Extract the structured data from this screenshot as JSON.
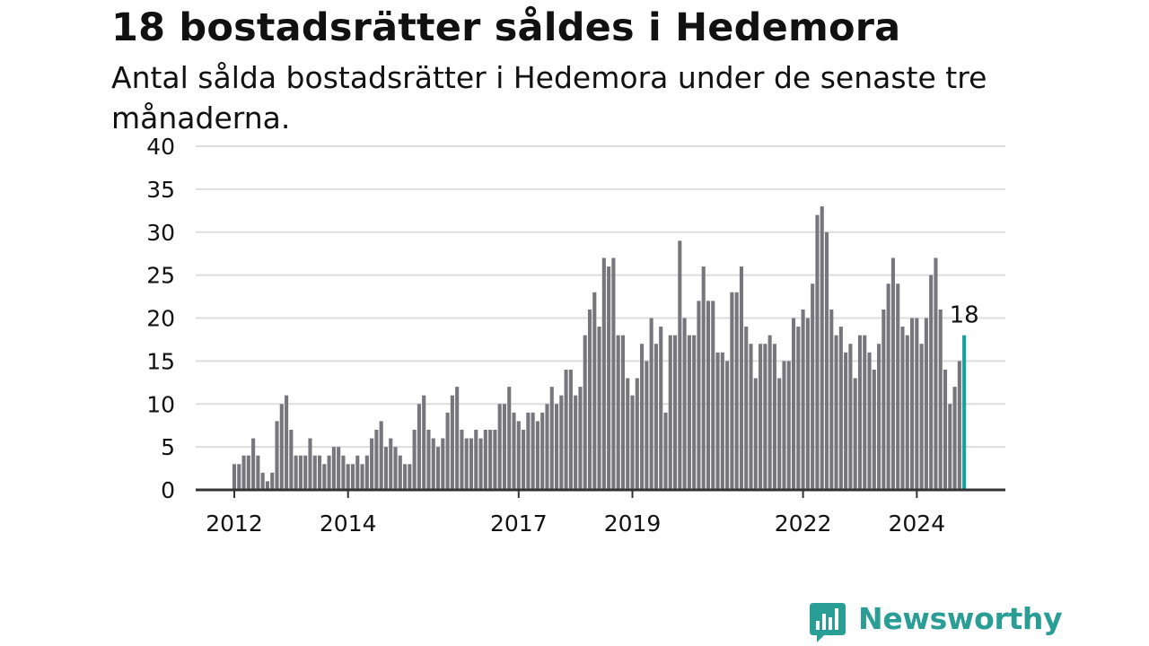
{
  "header": {
    "title": "18 bostadsrätter såldes i Hedemora",
    "subtitle": "Antal sålda bostadsrätter i Hedemora under de senaste tre månaderna."
  },
  "brand": {
    "name": "Newsworthy",
    "icon": "newsworthy-chart-bubble-icon"
  },
  "colors": {
    "bar": "#77767c",
    "highlight": "#16a1a0",
    "grid": "#dddddd",
    "axis": "#333333",
    "text": "#111111",
    "brand": "#2a9d95"
  },
  "chart_data": {
    "type": "bar",
    "title": "18 bostadsrätter såldes i Hedemora",
    "ylim": [
      0,
      40
    ],
    "yticks": [
      0,
      5,
      10,
      15,
      20,
      25,
      30,
      35,
      40
    ],
    "xticks": [
      "2012",
      "2014",
      "2017",
      "2019",
      "2022",
      "2024"
    ],
    "grid": true,
    "start": "2012-01",
    "frequency": "monthly",
    "values": [
      3,
      3,
      4,
      4,
      6,
      4,
      2,
      1,
      2,
      8,
      10,
      11,
      7,
      4,
      4,
      4,
      6,
      4,
      4,
      3,
      4,
      5,
      5,
      4,
      3,
      3,
      4,
      3,
      4,
      6,
      7,
      8,
      5,
      6,
      5,
      4,
      3,
      3,
      7,
      10,
      11,
      7,
      6,
      5,
      6,
      9,
      11,
      12,
      7,
      6,
      6,
      7,
      6,
      7,
      7,
      7,
      10,
      10,
      12,
      9,
      8,
      7,
      9,
      9,
      8,
      9,
      10,
      12,
      10,
      11,
      14,
      14,
      11,
      12,
      18,
      21,
      23,
      19,
      27,
      26,
      27,
      18,
      18,
      13,
      11,
      13,
      17,
      15,
      20,
      17,
      19,
      9,
      18,
      18,
      29,
      20,
      18,
      18,
      22,
      26,
      22,
      22,
      16,
      16,
      15,
      23,
      23,
      26,
      19,
      17,
      13,
      17,
      17,
      18,
      17,
      13,
      15,
      15,
      20,
      19,
      21,
      20,
      24,
      32,
      33,
      30,
      21,
      18,
      19,
      16,
      17,
      13,
      18,
      18,
      16,
      14,
      17,
      21,
      24,
      27,
      24,
      19,
      18,
      20,
      20,
      17,
      20,
      25,
      27,
      21,
      14,
      10,
      12,
      15,
      18
    ],
    "highlight_label": "18"
  }
}
